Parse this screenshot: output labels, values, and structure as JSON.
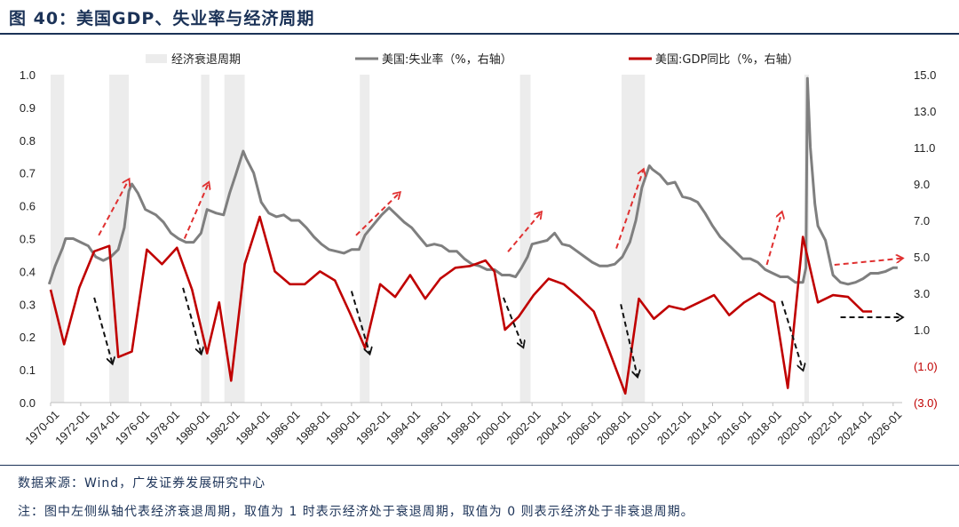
{
  "title": "图 40：美国GDP、失业率与经济周期",
  "source": "数据来源：Wind，广发证券发展研究中心",
  "note": "注：图中左侧纵轴代表经济衰退周期，取值为 1 时表示经济处于衰退周期，取值为 0 则表示经济处于非衰退周期。",
  "colors": {
    "unemployment": "#7f7f7f",
    "gdp": "#c00000",
    "recession": "#ececec",
    "arrow_red": "#e03030",
    "arrow_black": "#111111"
  },
  "chart_data": {
    "type": "line",
    "legend": [
      "经济衰退周期",
      "美国:失业率（%，右轴）",
      "美国:GDP同比（%，右轴）"
    ],
    "left_axis": {
      "range": [
        0,
        1
      ],
      "ticks": [
        "1.0",
        "0.9",
        "0.8",
        "0.7",
        "0.6",
        "0.5",
        "0.4",
        "0.3",
        "0.2",
        "0.1",
        "0.0"
      ]
    },
    "right_axis": {
      "range": [
        -3,
        15
      ],
      "ticks": [
        "15.0",
        "13.0",
        "11.0",
        "9.0",
        "7.0",
        "5.0",
        "3.0",
        "1.0",
        "(1.0)",
        "(3.0)"
      ]
    },
    "x_labels": [
      "1970-01",
      "1972-01",
      "1974-01",
      "1976-01",
      "1978-01",
      "1980-01",
      "1982-01",
      "1984-01",
      "1986-01",
      "1988-01",
      "1990-01",
      "1992-01",
      "1994-01",
      "1996-01",
      "1998-01",
      "2000-01",
      "2002-01",
      "2004-01",
      "2006-01",
      "2008-01",
      "2010-01",
      "2012-01",
      "2014-01",
      "2016-01",
      "2018-01",
      "2020-01",
      "2022-01",
      "2024-01",
      "2026-01"
    ],
    "x_range": [
      1970.0,
      2026.6
    ],
    "recessions": [
      [
        1970.0,
        1970.9
      ],
      [
        1973.9,
        1975.2
      ],
      [
        1980.0,
        1980.55
      ],
      [
        1981.55,
        1982.9
      ],
      [
        1990.55,
        1991.2
      ],
      [
        2001.2,
        2001.9
      ],
      [
        2007.95,
        2009.5
      ],
      [
        2020.1,
        2020.4
      ]
    ],
    "unemployment": [
      [
        1969.9,
        3.5
      ],
      [
        1970.3,
        4.5
      ],
      [
        1970.8,
        5.5
      ],
      [
        1971.0,
        6.0
      ],
      [
        1971.5,
        6.0
      ],
      [
        1972.0,
        5.8
      ],
      [
        1972.5,
        5.6
      ],
      [
        1973.0,
        5.0
      ],
      [
        1973.5,
        4.8
      ],
      [
        1974.0,
        5.0
      ],
      [
        1974.5,
        5.4
      ],
      [
        1974.9,
        6.6
      ],
      [
        1975.2,
        8.6
      ],
      [
        1975.4,
        9.0
      ],
      [
        1975.8,
        8.5
      ],
      [
        1976.3,
        7.6
      ],
      [
        1977.0,
        7.3
      ],
      [
        1977.5,
        6.9
      ],
      [
        1978.0,
        6.3
      ],
      [
        1978.5,
        6.0
      ],
      [
        1979.0,
        5.8
      ],
      [
        1979.5,
        5.8
      ],
      [
        1980.0,
        6.3
      ],
      [
        1980.4,
        7.6
      ],
      [
        1980.7,
        7.5
      ],
      [
        1981.0,
        7.4
      ],
      [
        1981.5,
        7.3
      ],
      [
        1981.9,
        8.5
      ],
      [
        1982.3,
        9.5
      ],
      [
        1982.8,
        10.8
      ],
      [
        1983.0,
        10.4
      ],
      [
        1983.5,
        9.6
      ],
      [
        1984.0,
        8.0
      ],
      [
        1984.5,
        7.4
      ],
      [
        1985.0,
        7.2
      ],
      [
        1985.5,
        7.3
      ],
      [
        1986.0,
        7.0
      ],
      [
        1986.5,
        7.0
      ],
      [
        1987.0,
        6.6
      ],
      [
        1987.5,
        6.1
      ],
      [
        1988.0,
        5.7
      ],
      [
        1988.5,
        5.4
      ],
      [
        1989.0,
        5.3
      ],
      [
        1989.5,
        5.2
      ],
      [
        1990.0,
        5.4
      ],
      [
        1990.5,
        5.4
      ],
      [
        1990.9,
        6.2
      ],
      [
        1991.5,
        6.8
      ],
      [
        1992.0,
        7.3
      ],
      [
        1992.5,
        7.7
      ],
      [
        1993.0,
        7.3
      ],
      [
        1993.5,
        6.9
      ],
      [
        1994.0,
        6.6
      ],
      [
        1994.5,
        6.1
      ],
      [
        1995.0,
        5.6
      ],
      [
        1995.5,
        5.7
      ],
      [
        1996.0,
        5.6
      ],
      [
        1996.5,
        5.3
      ],
      [
        1997.0,
        5.3
      ],
      [
        1997.5,
        4.9
      ],
      [
        1998.0,
        4.6
      ],
      [
        1998.5,
        4.5
      ],
      [
        1999.0,
        4.3
      ],
      [
        1999.5,
        4.3
      ],
      [
        2000.0,
        4.0
      ],
      [
        2000.5,
        4.0
      ],
      [
        2000.9,
        3.9
      ],
      [
        2001.3,
        4.4
      ],
      [
        2001.7,
        5.0
      ],
      [
        2002.0,
        5.7
      ],
      [
        2002.5,
        5.8
      ],
      [
        2003.0,
        5.9
      ],
      [
        2003.5,
        6.3
      ],
      [
        2004.0,
        5.7
      ],
      [
        2004.5,
        5.6
      ],
      [
        2005.0,
        5.3
      ],
      [
        2005.5,
        5.0
      ],
      [
        2006.0,
        4.7
      ],
      [
        2006.5,
        4.5
      ],
      [
        2007.0,
        4.5
      ],
      [
        2007.5,
        4.6
      ],
      [
        2008.0,
        5.0
      ],
      [
        2008.5,
        5.8
      ],
      [
        2008.9,
        7.0
      ],
      [
        2009.3,
        8.8
      ],
      [
        2009.8,
        10.0
      ],
      [
        2010.0,
        9.8
      ],
      [
        2010.5,
        9.5
      ],
      [
        2011.0,
        9.0
      ],
      [
        2011.5,
        9.1
      ],
      [
        2012.0,
        8.3
      ],
      [
        2012.5,
        8.2
      ],
      [
        2013.0,
        8.0
      ],
      [
        2013.5,
        7.4
      ],
      [
        2014.0,
        6.7
      ],
      [
        2014.5,
        6.1
      ],
      [
        2015.0,
        5.7
      ],
      [
        2015.5,
        5.3
      ],
      [
        2016.0,
        4.9
      ],
      [
        2016.5,
        4.9
      ],
      [
        2017.0,
        4.7
      ],
      [
        2017.5,
        4.3
      ],
      [
        2018.0,
        4.1
      ],
      [
        2018.5,
        3.9
      ],
      [
        2019.0,
        3.9
      ],
      [
        2019.5,
        3.6
      ],
      [
        2020.0,
        3.6
      ],
      [
        2020.2,
        4.4
      ],
      [
        2020.3,
        14.8
      ],
      [
        2020.5,
        11.0
      ],
      [
        2020.8,
        7.9
      ],
      [
        2021.0,
        6.7
      ],
      [
        2021.5,
        5.9
      ],
      [
        2022.0,
        4.0
      ],
      [
        2022.5,
        3.6
      ],
      [
        2023.0,
        3.5
      ],
      [
        2023.5,
        3.6
      ],
      [
        2024.0,
        3.8
      ],
      [
        2024.5,
        4.1
      ],
      [
        2025.0,
        4.1
      ],
      [
        2025.5,
        4.2
      ],
      [
        2026.0,
        4.4
      ],
      [
        2026.3,
        4.4
      ]
    ],
    "gdp": [
      [
        1970.0,
        3.2
      ],
      [
        1970.9,
        0.2
      ],
      [
        1971.9,
        3.3
      ],
      [
        1972.9,
        5.3
      ],
      [
        1973.9,
        5.6
      ],
      [
        1974.5,
        -0.5
      ],
      [
        1975.4,
        -0.2
      ],
      [
        1976.4,
        5.4
      ],
      [
        1977.4,
        4.6
      ],
      [
        1978.4,
        5.5
      ],
      [
        1979.4,
        3.2
      ],
      [
        1980.4,
        -0.3
      ],
      [
        1981.2,
        2.5
      ],
      [
        1982.0,
        -1.8
      ],
      [
        1982.9,
        4.6
      ],
      [
        1983.9,
        7.2
      ],
      [
        1984.9,
        4.2
      ],
      [
        1985.9,
        3.5
      ],
      [
        1986.9,
        3.5
      ],
      [
        1987.9,
        4.2
      ],
      [
        1988.9,
        3.7
      ],
      [
        1989.9,
        1.9
      ],
      [
        1990.9,
        0.0
      ],
      [
        1991.9,
        3.5
      ],
      [
        1992.9,
        2.8
      ],
      [
        1993.9,
        4.0
      ],
      [
        1994.9,
        2.7
      ],
      [
        1995.9,
        3.8
      ],
      [
        1996.9,
        4.4
      ],
      [
        1997.9,
        4.5
      ],
      [
        1998.9,
        4.8
      ],
      [
        1999.5,
        4.2
      ],
      [
        2000.2,
        1.0
      ],
      [
        2001.1,
        1.7
      ],
      [
        2002.1,
        2.9
      ],
      [
        2003.1,
        3.8
      ],
      [
        2004.1,
        3.5
      ],
      [
        2005.1,
        2.8
      ],
      [
        2006.1,
        2.0
      ],
      [
        2007.1,
        -0.1
      ],
      [
        2008.2,
        -2.5
      ],
      [
        2009.1,
        2.7
      ],
      [
        2010.1,
        1.6
      ],
      [
        2011.1,
        2.3
      ],
      [
        2012.1,
        2.1
      ],
      [
        2013.1,
        2.5
      ],
      [
        2014.1,
        2.9
      ],
      [
        2015.1,
        1.8
      ],
      [
        2016.1,
        2.5
      ],
      [
        2017.1,
        3.0
      ],
      [
        2018.1,
        2.5
      ],
      [
        2019.0,
        -2.2
      ],
      [
        2020.0,
        6.1
      ],
      [
        2021.0,
        2.5
      ],
      [
        2022.0,
        2.9
      ],
      [
        2023.0,
        2.8
      ],
      [
        2024.0,
        2.0
      ],
      [
        2024.6,
        2.0
      ]
    ],
    "trend_arrows": [
      {
        "color": "red",
        "from": [
          1973.2,
          0.51
        ],
        "to": [
          1975.2,
          0.68
        ]
      },
      {
        "color": "red",
        "from": [
          1978.9,
          0.5
        ],
        "to": [
          1980.5,
          0.67
        ]
      },
      {
        "color": "red",
        "from": [
          1990.3,
          0.51
        ],
        "to": [
          1993.2,
          0.64
        ]
      },
      {
        "color": "red",
        "from": [
          2000.4,
          0.46
        ],
        "to": [
          2002.6,
          0.58
        ]
      },
      {
        "color": "red",
        "from": [
          2007.6,
          0.47
        ],
        "to": [
          2009.4,
          0.71
        ]
      },
      {
        "color": "red",
        "from": [
          2017.6,
          0.42
        ],
        "to": [
          2018.6,
          0.58
        ]
      },
      {
        "color": "red",
        "from": [
          2022.1,
          0.42
        ],
        "to": [
          2026.6,
          0.44
        ]
      },
      {
        "color": "black",
        "from": [
          1972.9,
          0.32
        ],
        "to": [
          1974.1,
          0.12
        ]
      },
      {
        "color": "black",
        "from": [
          1978.8,
          0.35
        ],
        "to": [
          1980.0,
          0.15
        ]
      },
      {
        "color": "black",
        "from": [
          1990.0,
          0.34
        ],
        "to": [
          1991.2,
          0.15
        ]
      },
      {
        "color": "black",
        "from": [
          2000.1,
          0.32
        ],
        "to": [
          2001.4,
          0.17
        ]
      },
      {
        "color": "black",
        "from": [
          2007.9,
          0.3
        ],
        "to": [
          2009.0,
          0.08
        ]
      },
      {
        "color": "black",
        "from": [
          2018.6,
          0.31
        ],
        "to": [
          2020.0,
          0.1
        ]
      },
      {
        "color": "black",
        "from": [
          2022.5,
          0.26
        ],
        "to": [
          2026.6,
          0.26
        ]
      }
    ]
  }
}
